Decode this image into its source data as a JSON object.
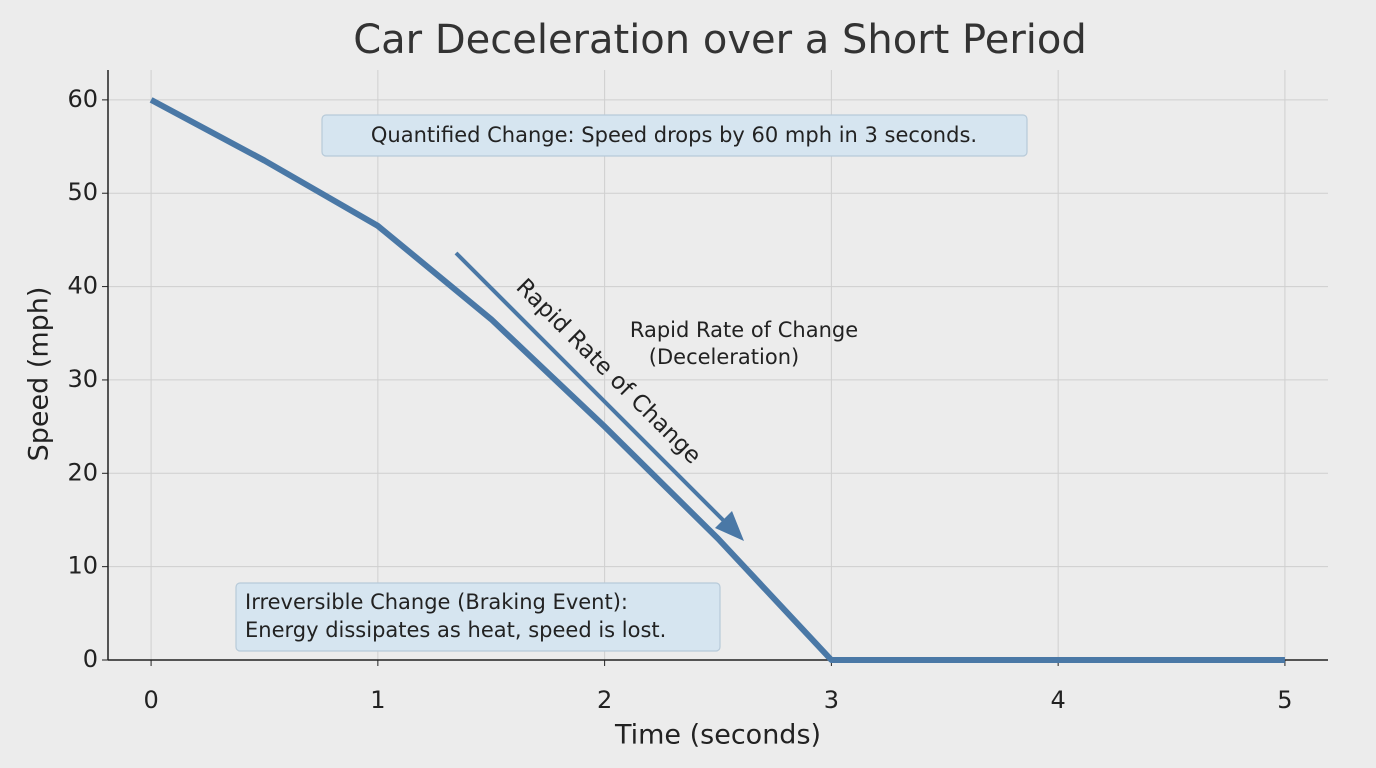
{
  "chart_data": {
    "type": "line",
    "title": "Car Deceleration over a Short Period",
    "x_label": "Time (seconds)",
    "y_label": "Speed (mph)",
    "x": [
      0,
      0.5,
      1,
      1.5,
      2,
      2.5,
      3,
      4,
      5
    ],
    "values": [
      60,
      53.5,
      46.5,
      36.5,
      25,
      13,
      0,
      0,
      0
    ],
    "color": "#4a78a6",
    "xlim": [
      -0.19,
      5.19
    ],
    "ylim": [
      0,
      63.2
    ],
    "xticks": [
      0,
      1,
      2,
      3,
      4,
      5
    ],
    "yticks": [
      0,
      10,
      20,
      30,
      40,
      50,
      60
    ],
    "grid": true,
    "annotations": [
      {
        "text": "Quantified Change: Speed drops by 60 mph in 3 seconds."
      },
      {
        "lines": [
          "Irreversible Change (Braking Event):",
          "Energy dissipates as heat, speed is lost."
        ]
      },
      {
        "lines": [
          "Rapid Rate of Change",
          "(Deceleration)"
        ]
      },
      {
        "text": "Rapid Rate of Change"
      }
    ]
  }
}
